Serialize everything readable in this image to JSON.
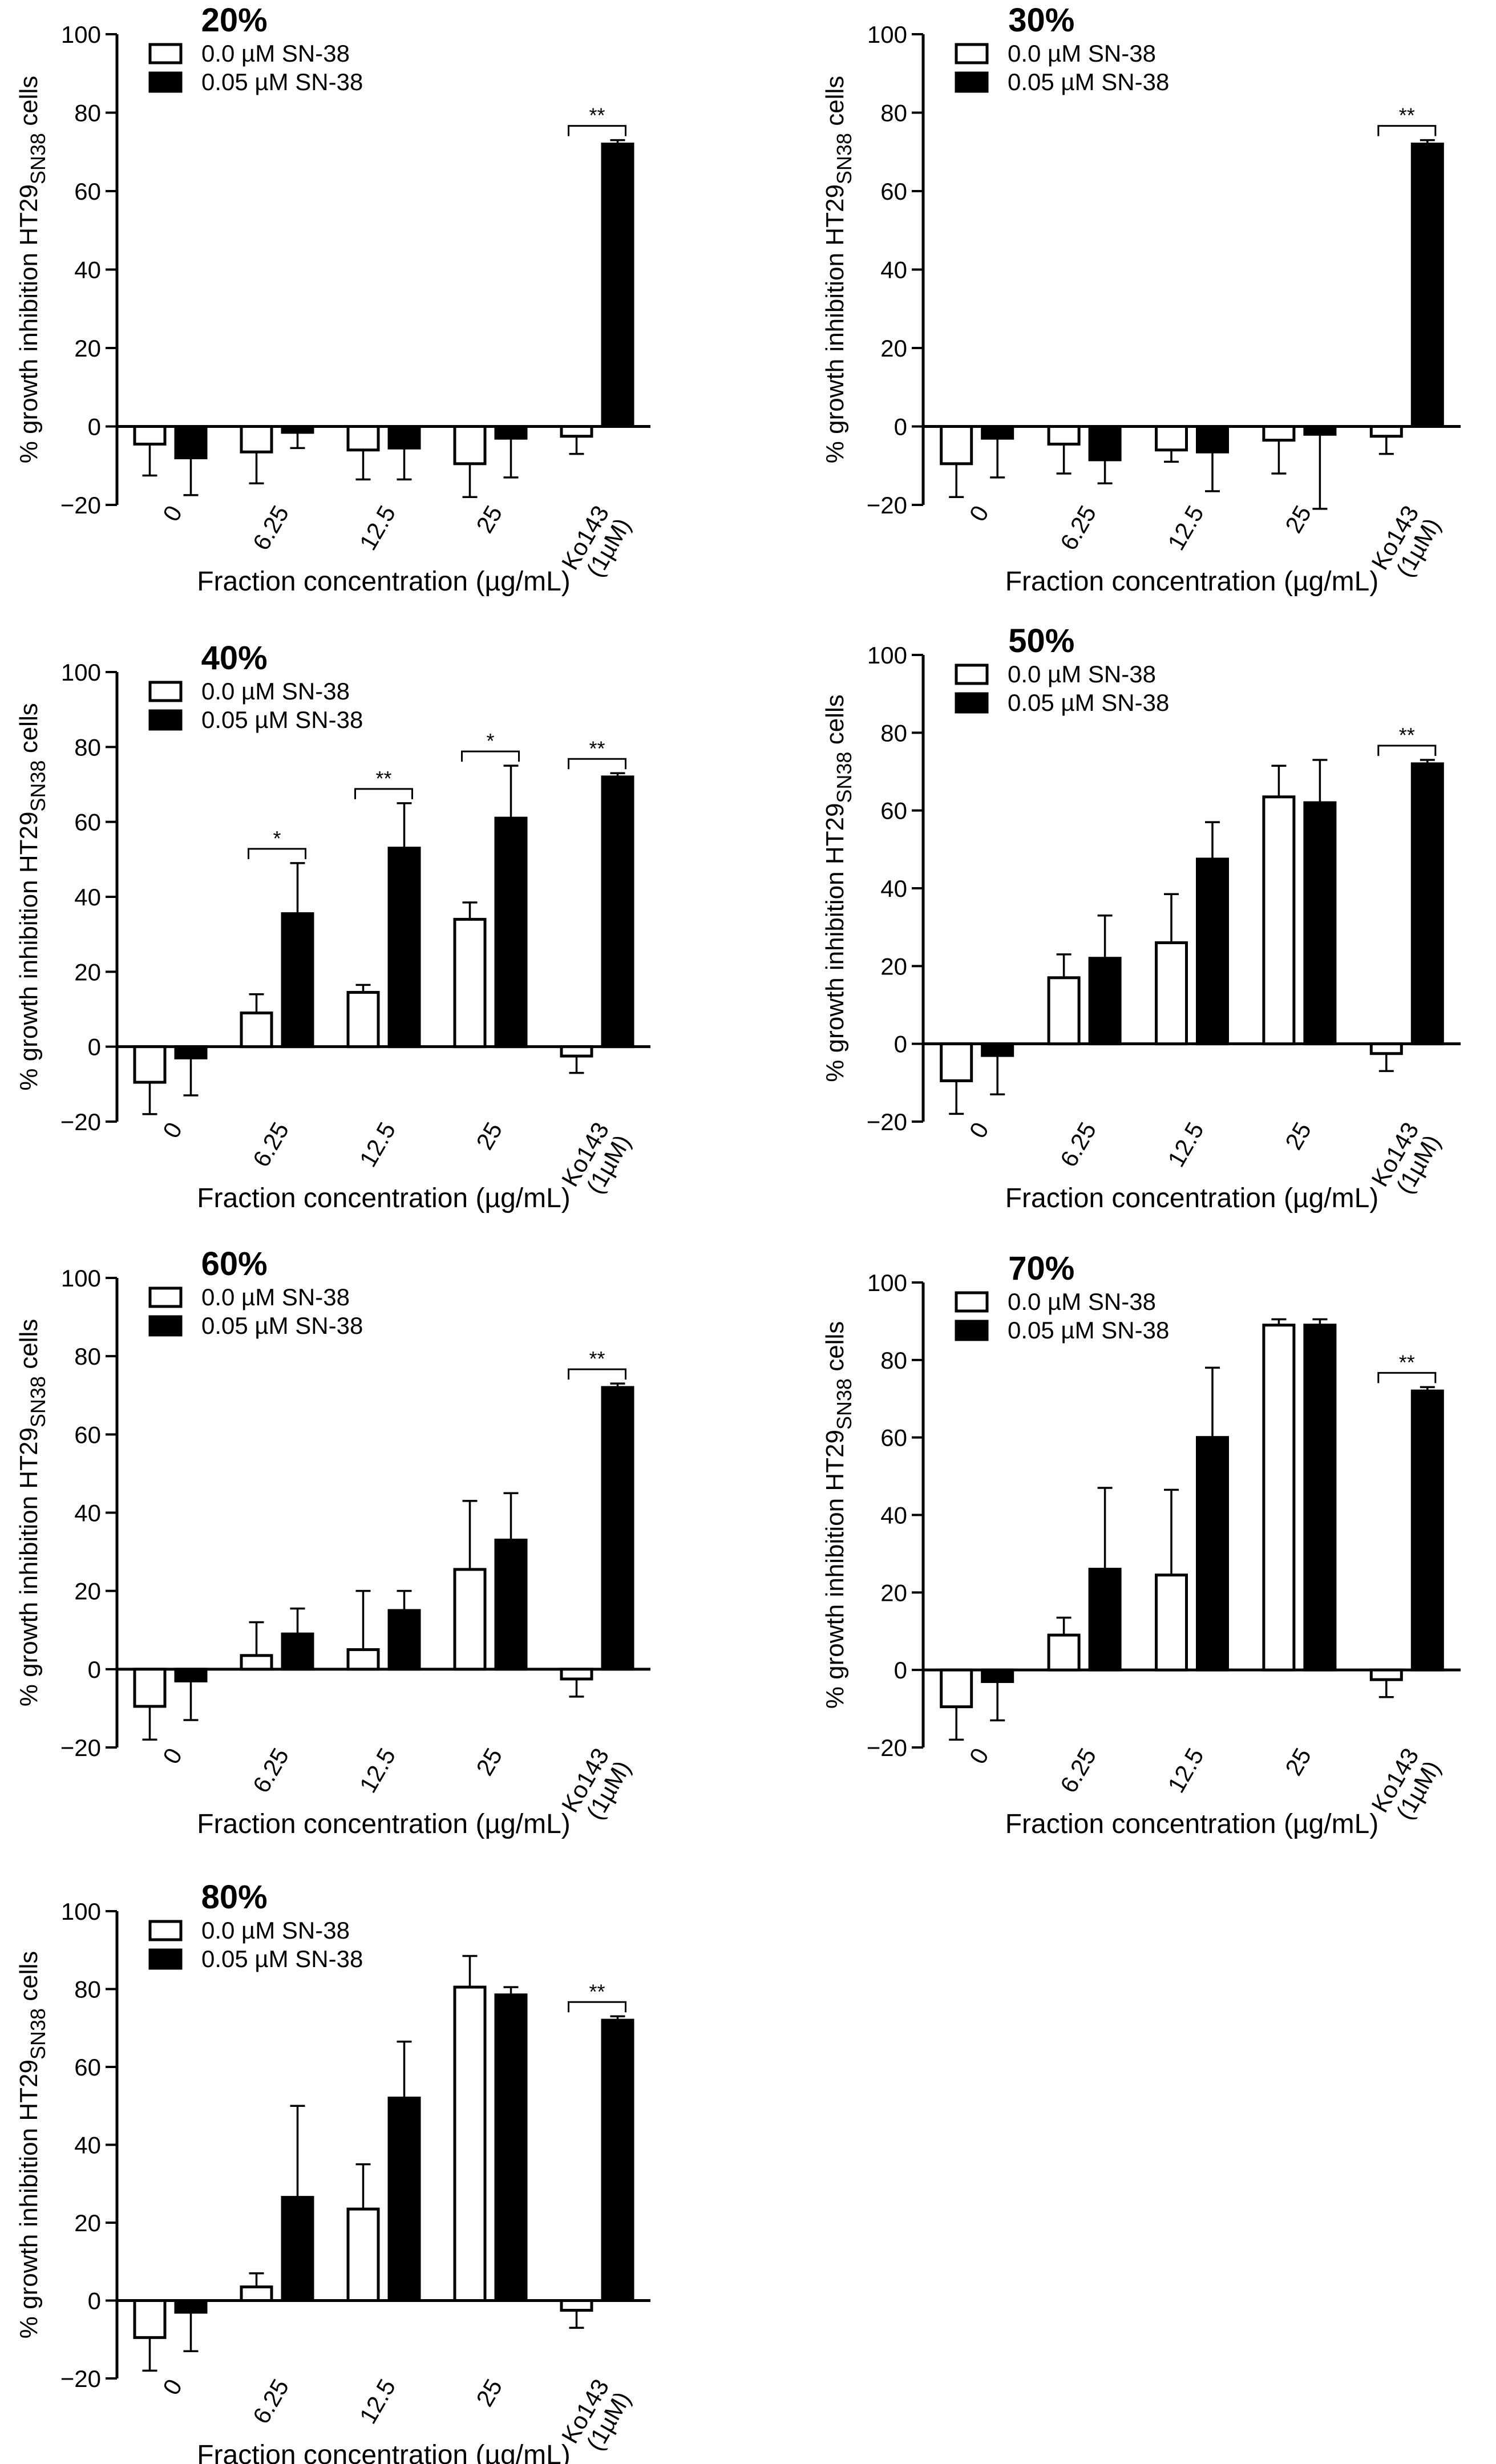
{
  "figure": {
    "ylabel_prefix": "% growth inhibition HT29",
    "ylabel_subscript": "SN38",
    "ylabel_suffix": " cells",
    "xlabel": "Fraction concentration (µg/mL)",
    "legend": {
      "open": "0.0 µM SN-38",
      "filled": "0.05 µM SN-38"
    }
  },
  "chart_data": [
    {
      "type": "bar",
      "title": "20%",
      "categories": [
        "0",
        "6.25",
        "12.5",
        "25",
        "Ko143|(1µM)"
      ],
      "xlabel": "Fraction concentration (µg/mL)",
      "ylabel": "% growth inhibition HT29SN38 cells",
      "ylim": [
        -20,
        100
      ],
      "yticks": [
        -20,
        0,
        20,
        40,
        60,
        80,
        100
      ],
      "series": [
        {
          "name": "0.0 µM SN-38",
          "fill": "none",
          "values": [
            -4.5,
            -6.5,
            -6,
            -9.5,
            -2.5
          ],
          "errors": [
            8,
            8,
            7.5,
            8.5,
            4.5
          ]
        },
        {
          "name": "0.05 µM SN-38",
          "fill": "#000000",
          "values": [
            -8,
            -1.5,
            -5.5,
            -3,
            72
          ],
          "errors": [
            9.5,
            4,
            8,
            10,
            1
          ]
        }
      ],
      "significance": [
        {
          "category": 4,
          "label": "**"
        }
      ]
    },
    {
      "type": "bar",
      "title": "30%",
      "categories": [
        "0",
        "6.25",
        "12.5",
        "25",
        "Ko143|(1µM)"
      ],
      "xlabel": "Fraction concentration (µg/mL)",
      "ylabel": "% growth inhibition HT29SN38 cells",
      "ylim": [
        -20,
        100
      ],
      "yticks": [
        -20,
        0,
        20,
        40,
        60,
        80,
        100
      ],
      "series": [
        {
          "name": "0.0 µM SN-38",
          "fill": "none",
          "values": [
            -9.5,
            -4.5,
            -6,
            -3.5,
            -2.5
          ],
          "errors": [
            8.5,
            7.5,
            3,
            8.5,
            4.5
          ]
        },
        {
          "name": "0.05 µM SN-38",
          "fill": "#000000",
          "values": [
            -3,
            -8.5,
            -6.5,
            -2,
            72
          ],
          "errors": [
            10,
            6,
            10,
            19,
            1
          ]
        }
      ],
      "significance": [
        {
          "category": 4,
          "label": "**"
        }
      ]
    },
    {
      "type": "bar",
      "title": "40%",
      "categories": [
        "0",
        "6.25",
        "12.5",
        "25",
        "Ko143|(1µM)"
      ],
      "xlabel": "Fraction concentration (µg/mL)",
      "ylabel": "% growth inhibition HT29SN38 cells",
      "ylim": [
        -20,
        100
      ],
      "yticks": [
        -20,
        0,
        20,
        40,
        60,
        80,
        100
      ],
      "series": [
        {
          "name": "0.0 µM SN-38",
          "fill": "none",
          "values": [
            -9.5,
            9,
            14.5,
            34,
            -2.5
          ],
          "errors": [
            8.5,
            5,
            2,
            4.5,
            4.5
          ]
        },
        {
          "name": "0.05 µM SN-38",
          "fill": "#000000",
          "values": [
            -3,
            35.5,
            53,
            61,
            72
          ],
          "errors": [
            10,
            13.5,
            12,
            14,
            1
          ]
        }
      ],
      "significance": [
        {
          "category": 1,
          "label": "*"
        },
        {
          "category": 2,
          "label": "**"
        },
        {
          "category": 3,
          "label": "*"
        },
        {
          "category": 4,
          "label": "**"
        }
      ]
    },
    {
      "type": "bar",
      "title": "50%",
      "categories": [
        "0",
        "6.25",
        "12.5",
        "25",
        "Ko143|(1µM)"
      ],
      "xlabel": "Fraction concentration (µg/mL)",
      "ylabel": "% growth inhibition HT29SN38 cells",
      "ylim": [
        -20,
        100
      ],
      "yticks": [
        -20,
        0,
        20,
        40,
        60,
        80,
        100
      ],
      "series": [
        {
          "name": "0.0 µM SN-38",
          "fill": "none",
          "values": [
            -9.5,
            17,
            26,
            63.5,
            -2.5
          ],
          "errors": [
            8.5,
            6,
            12.5,
            8,
            4.5
          ]
        },
        {
          "name": "0.05 µM SN-38",
          "fill": "#000000",
          "values": [
            -3,
            22,
            47.5,
            62,
            72
          ],
          "errors": [
            10,
            11,
            9.5,
            11,
            1
          ]
        }
      ],
      "significance": [
        {
          "category": 4,
          "label": "**"
        }
      ]
    },
    {
      "type": "bar",
      "title": "60%",
      "categories": [
        "0",
        "6.25",
        "12.5",
        "25",
        "Ko143|(1µM)"
      ],
      "xlabel": "Fraction concentration (µg/mL)",
      "ylabel": "% growth inhibition HT29SN38 cells",
      "ylim": [
        -20,
        100
      ],
      "yticks": [
        -20,
        0,
        20,
        40,
        60,
        80,
        100
      ],
      "series": [
        {
          "name": "0.0 µM SN-38",
          "fill": "none",
          "values": [
            -9.5,
            3.5,
            5,
            25.5,
            -2.5
          ],
          "errors": [
            8.5,
            8.5,
            15,
            17.5,
            4.5
          ]
        },
        {
          "name": "0.05 µM SN-38",
          "fill": "#000000",
          "values": [
            -3,
            9,
            15,
            33,
            72
          ],
          "errors": [
            10,
            6.5,
            5,
            12,
            1
          ]
        }
      ],
      "significance": [
        {
          "category": 4,
          "label": "**"
        }
      ]
    },
    {
      "type": "bar",
      "title": "70%",
      "categories": [
        "0",
        "6.25",
        "12.5",
        "25",
        "Ko143|(1µM)"
      ],
      "xlabel": "Fraction concentration (µg/mL)",
      "ylabel": "% growth inhibition HT29SN38 cells",
      "ylim": [
        -20,
        100
      ],
      "yticks": [
        -20,
        0,
        20,
        40,
        60,
        80,
        100
      ],
      "series": [
        {
          "name": "0.0 µM SN-38",
          "fill": "none",
          "values": [
            -9.5,
            9,
            24.5,
            89,
            -2.5
          ],
          "errors": [
            8.5,
            4.5,
            22,
            1.5,
            4.5
          ]
        },
        {
          "name": "0.05 µM SN-38",
          "fill": "#000000",
          "values": [
            -3,
            26,
            60,
            89,
            72
          ],
          "errors": [
            10,
            21,
            18,
            1.5,
            1
          ]
        }
      ],
      "significance": [
        {
          "category": 4,
          "label": "**"
        }
      ]
    },
    {
      "type": "bar",
      "title": "80%",
      "categories": [
        "0",
        "6.25",
        "12.5",
        "25",
        "Ko143|(1µM)"
      ],
      "xlabel": "Fraction concentration (µg/mL)",
      "ylabel": "% growth inhibition HT29SN38 cells",
      "ylim": [
        -20,
        100
      ],
      "yticks": [
        -20,
        0,
        20,
        40,
        60,
        80,
        100
      ],
      "series": [
        {
          "name": "0.0 µM SN-38",
          "fill": "none",
          "values": [
            -9.5,
            3.5,
            23.5,
            80.5,
            -2.5
          ],
          "errors": [
            8.5,
            3.5,
            11.5,
            8,
            4.5
          ]
        },
        {
          "name": "0.05 µM SN-38",
          "fill": "#000000",
          "values": [
            -3,
            26.5,
            52,
            78.5,
            72
          ],
          "errors": [
            10,
            23.5,
            14.5,
            2,
            1
          ]
        }
      ],
      "significance": [
        {
          "category": 4,
          "label": "**"
        }
      ]
    }
  ]
}
